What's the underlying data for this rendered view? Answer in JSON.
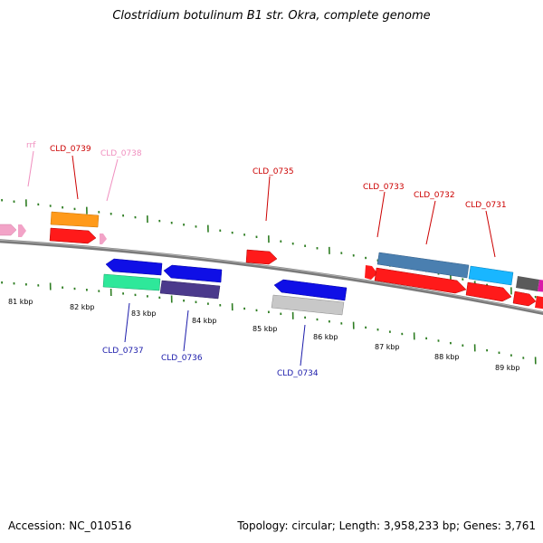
{
  "title": "Clostridium botulinum B1 str. Okra, complete genome",
  "footer": {
    "accession": "Accession: NC_010516",
    "summary": "Topology: circular; Length: 3,958,233 bp; Genes: 3,761"
  },
  "colors": {
    "backbone": "#808080",
    "tick": "#2e7d22",
    "label_red": "#cc0000",
    "label_pink": "#f08fbf",
    "label_blue": "#1a1aaa"
  },
  "scale_labels": [
    "81 kbp",
    "82 kbp",
    "83 kbp",
    "84 kbp",
    "85 kbp",
    "86 kbp",
    "87 kbp",
    "88 kbp",
    "89 kbp"
  ],
  "top_labels": [
    "rrf",
    "CLD_0739",
    "CLD_0738",
    "CLD_0735",
    "CLD_0733",
    "CLD_0732",
    "CLD_0731"
  ],
  "bottom_labels": [
    "CLD_0737",
    "CLD_0736",
    "CLD_0734"
  ]
}
